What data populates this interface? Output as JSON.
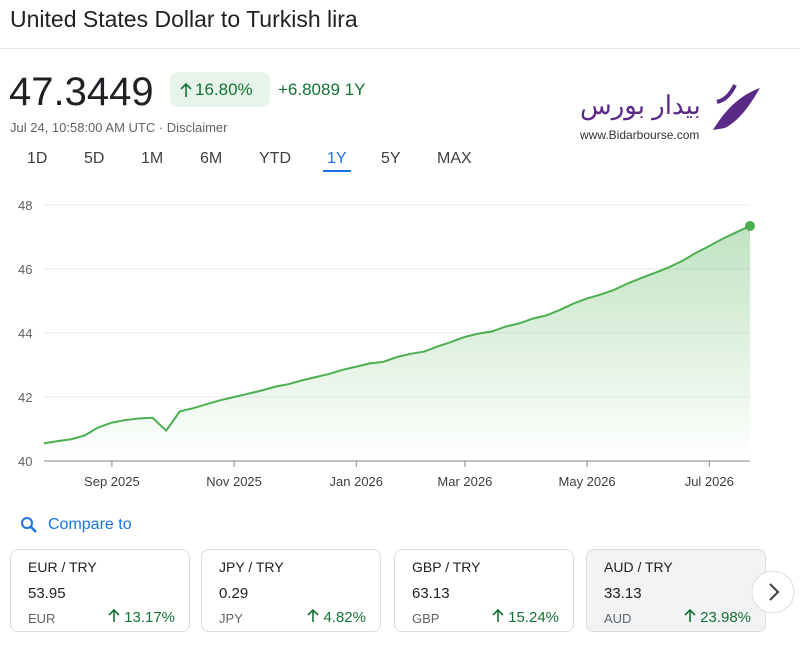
{
  "header": {
    "title": "United States Dollar to Turkish lira",
    "price": "47.3449",
    "change_percent": "16.80%",
    "change_abs": "+6.8089 1Y",
    "timestamp": "Jul 24, 10:58:00 AM UTC · Disclaimer"
  },
  "logo": {
    "name": "بیدار بورس",
    "url": "www.Bidarbourse.com"
  },
  "tabs": [
    "1D",
    "5D",
    "1M",
    "6M",
    "YTD",
    "1Y",
    "5Y",
    "MAX"
  ],
  "active_tab": 5,
  "chart": {
    "type": "line",
    "color": "#4caf50",
    "categories": [
      null,
      null,
      null,
      null,
      null,
      "Sep 2025",
      null,
      null,
      null,
      null,
      null,
      null,
      null,
      null,
      "Nov 2025",
      null,
      null,
      null,
      null,
      null,
      null,
      null,
      null,
      "Jan 2026",
      null,
      null,
      null,
      null,
      null,
      null,
      null,
      "Mar 2026",
      null,
      null,
      null,
      null,
      null,
      null,
      null,
      null,
      "May 2026",
      null,
      null,
      null,
      null,
      null,
      null,
      null,
      null,
      "Jul 2026",
      null,
      null,
      null
    ],
    "values": [
      40.55,
      40.62,
      40.68,
      40.8,
      41.05,
      41.2,
      41.28,
      41.33,
      41.35,
      40.95,
      41.55,
      41.65,
      41.78,
      41.9,
      42.0,
      42.1,
      42.2,
      42.32,
      42.4,
      42.52,
      42.62,
      42.72,
      42.85,
      42.95,
      43.05,
      43.1,
      43.25,
      43.35,
      43.42,
      43.58,
      43.72,
      43.88,
      43.98,
      44.05,
      44.2,
      44.3,
      44.45,
      44.55,
      44.72,
      44.92,
      45.08,
      45.2,
      45.35,
      45.55,
      45.72,
      45.88,
      46.05,
      46.25,
      46.5,
      46.72,
      46.95,
      47.15,
      47.3449
    ],
    "ylim": [
      40,
      48
    ],
    "yticks": [
      40,
      42,
      44,
      46,
      48
    ],
    "grid": true
  },
  "compare": {
    "title": "Compare to",
    "cards": [
      {
        "pair": "EUR / TRY",
        "value": "53.95",
        "currency": "EUR",
        "change": "13.17%"
      },
      {
        "pair": "JPY / TRY",
        "value": "0.29",
        "currency": "JPY",
        "change": "4.82%"
      },
      {
        "pair": "GBP / TRY",
        "value": "63.13",
        "currency": "GBP",
        "change": "15.24%"
      },
      {
        "pair": "AUD / TRY",
        "value": "33.13",
        "currency": "AUD",
        "change": "23.98%"
      }
    ]
  }
}
